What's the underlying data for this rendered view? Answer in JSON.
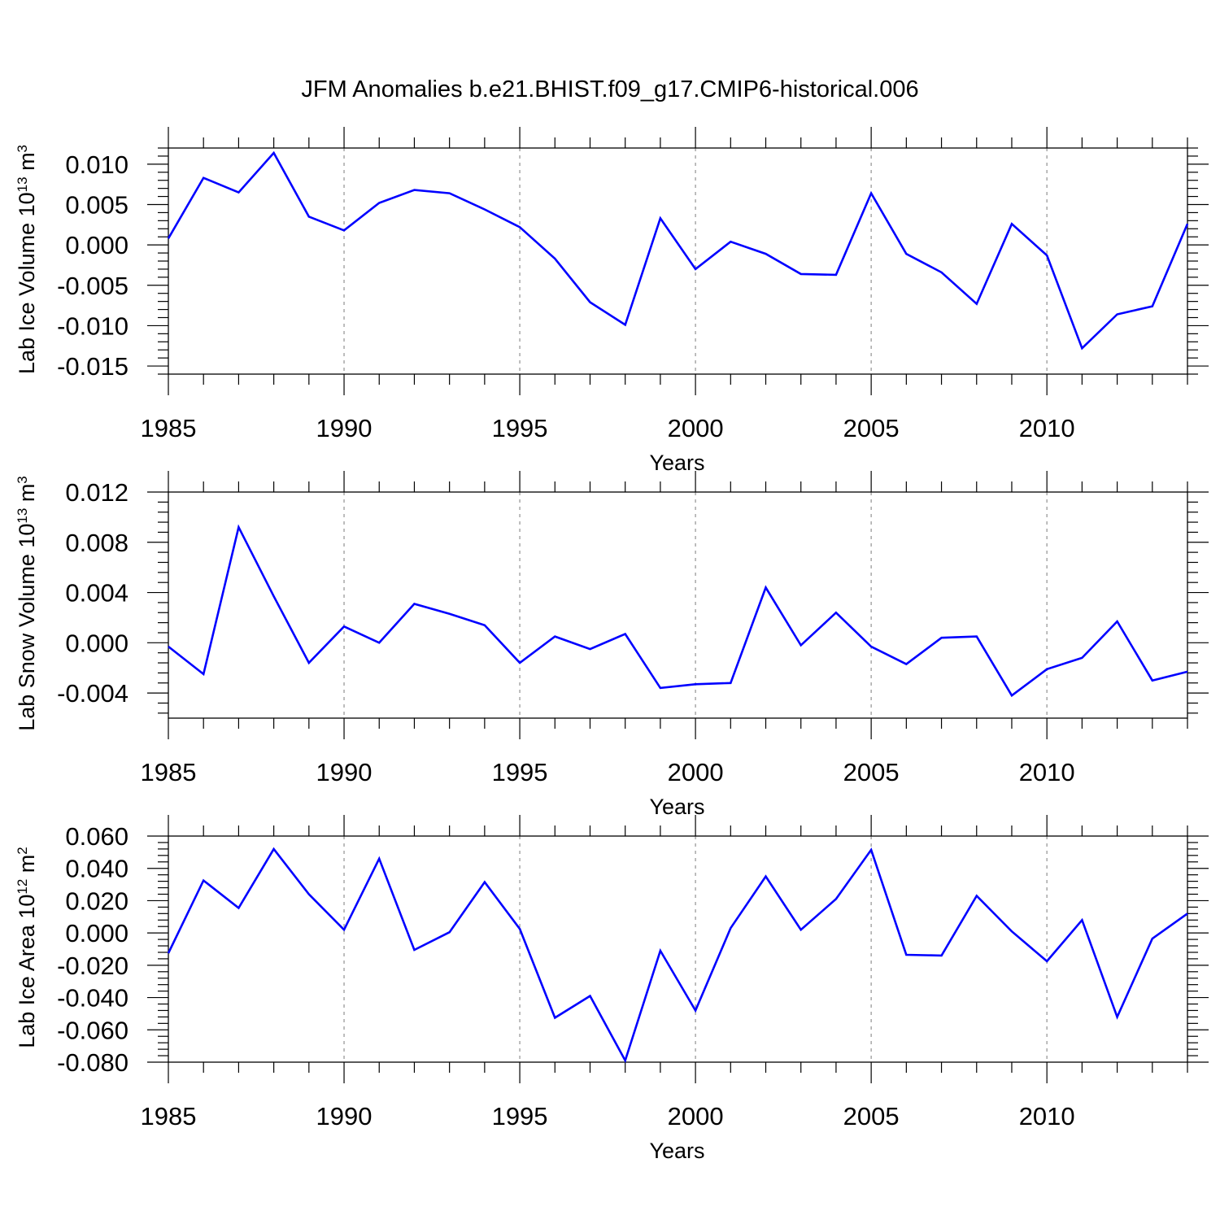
{
  "title": "JFM Anomalies b.e21.BHIST.f09_g17.CMIP6-historical.006",
  "colors": {
    "line": "#0000ff",
    "axis": "#000000",
    "grid": "#9a9a9a"
  },
  "chart_data": [
    {
      "type": "line",
      "ylabel": "Lab Ice Volume 10",
      "ylabel_exp": "13",
      "ylabel_unit": " m",
      "ylabel_unit_exp": "3",
      "xlabel": "Years",
      "xlim": [
        1985,
        2014
      ],
      "ylim": [
        -0.016,
        0.012
      ],
      "yticks": [
        0.01,
        0.005,
        0.0,
        -0.005,
        -0.01,
        -0.015
      ],
      "ytick_labels": [
        "0.010",
        "0.005",
        "0.000",
        "-0.005",
        "-0.010",
        "-0.015"
      ],
      "xticks": [
        1985,
        1990,
        1995,
        2000,
        2005,
        2010
      ],
      "xtick_labels": [
        "1985",
        "1990",
        "1995",
        "2000",
        "2005",
        "2010"
      ],
      "x": [
        1985,
        1986,
        1987,
        1988,
        1989,
        1990,
        1991,
        1992,
        1993,
        1994,
        1995,
        1996,
        1997,
        1998,
        1999,
        2000,
        2001,
        2002,
        2003,
        2004,
        2005,
        2006,
        2007,
        2008,
        2009,
        2010,
        2011,
        2012,
        2013,
        2014
      ],
      "values": [
        0.0008,
        0.0083,
        0.0065,
        0.0114,
        0.0035,
        0.0018,
        0.0052,
        0.0068,
        0.0064,
        0.0044,
        0.0022,
        -0.0017,
        -0.0071,
        -0.0099,
        0.0033,
        -0.003,
        0.0004,
        -0.0011,
        -0.0036,
        -0.0037,
        0.0064,
        -0.0011,
        -0.0034,
        -0.0073,
        0.0026,
        -0.0013,
        -0.0128,
        -0.0086,
        -0.0076,
        0.0026
      ]
    },
    {
      "type": "line",
      "ylabel": "Lab Snow Volume 10",
      "ylabel_exp": "13",
      "ylabel_unit": " m",
      "ylabel_unit_exp": "3",
      "xlabel": "Years",
      "xlim": [
        1985,
        2014
      ],
      "ylim": [
        -0.006,
        0.012
      ],
      "yticks": [
        0.012,
        0.008,
        0.004,
        0.0,
        -0.004
      ],
      "ytick_labels": [
        "0.012",
        "0.008",
        "0.004",
        "0.000",
        "-0.004"
      ],
      "xticks": [
        1985,
        1990,
        1995,
        2000,
        2005,
        2010
      ],
      "xtick_labels": [
        "1985",
        "1990",
        "1995",
        "2000",
        "2005",
        "2010"
      ],
      "x": [
        1985,
        1986,
        1987,
        1988,
        1989,
        1990,
        1991,
        1992,
        1993,
        1994,
        1995,
        1996,
        1997,
        1998,
        1999,
        2000,
        2001,
        2002,
        2003,
        2004,
        2005,
        2006,
        2007,
        2008,
        2009,
        2010,
        2011,
        2012,
        2013,
        2014
      ],
      "values": [
        -0.0003,
        -0.0025,
        0.0092,
        0.0037,
        -0.0016,
        0.0013,
        0.0,
        0.0031,
        0.0023,
        0.0014,
        -0.0016,
        0.0005,
        -0.0005,
        0.0007,
        -0.0036,
        -0.0033,
        -0.0032,
        0.0044,
        -0.0002,
        0.0024,
        -0.0003,
        -0.0017,
        0.0004,
        0.0005,
        -0.0042,
        -0.0021,
        -0.0012,
        0.0017,
        -0.003,
        -0.0023
      ]
    },
    {
      "type": "line",
      "ylabel": "Lab Ice Area 10",
      "ylabel_exp": "12",
      "ylabel_unit": " m",
      "ylabel_unit_exp": "2",
      "xlabel": "Years",
      "xlim": [
        1985,
        2014
      ],
      "ylim": [
        -0.08,
        0.06
      ],
      "yticks": [
        0.06,
        0.04,
        0.02,
        0.0,
        -0.02,
        -0.04,
        -0.06,
        -0.08
      ],
      "ytick_labels": [
        "0.060",
        "0.040",
        "0.020",
        "0.000",
        "-0.020",
        "-0.040",
        "-0.060",
        "-0.080"
      ],
      "xticks": [
        1985,
        1990,
        1995,
        2000,
        2005,
        2010
      ],
      "xtick_labels": [
        "1985",
        "1990",
        "1995",
        "2000",
        "2005",
        "2010"
      ],
      "x": [
        1985,
        1986,
        1987,
        1988,
        1989,
        1990,
        1991,
        1992,
        1993,
        1994,
        1995,
        1996,
        1997,
        1998,
        1999,
        2000,
        2001,
        2002,
        2003,
        2004,
        2005,
        2006,
        2007,
        2008,
        2009,
        2010,
        2011,
        2012,
        2013,
        2014
      ],
      "values": [
        -0.0125,
        0.0325,
        0.0155,
        0.052,
        0.024,
        0.002,
        0.046,
        -0.0105,
        0.0005,
        0.0315,
        0.0025,
        -0.0525,
        -0.039,
        -0.079,
        -0.011,
        -0.048,
        0.003,
        0.035,
        0.002,
        0.021,
        0.0515,
        -0.0135,
        -0.014,
        0.023,
        0.001,
        -0.0175,
        0.008,
        -0.052,
        -0.0035,
        0.012
      ]
    }
  ]
}
